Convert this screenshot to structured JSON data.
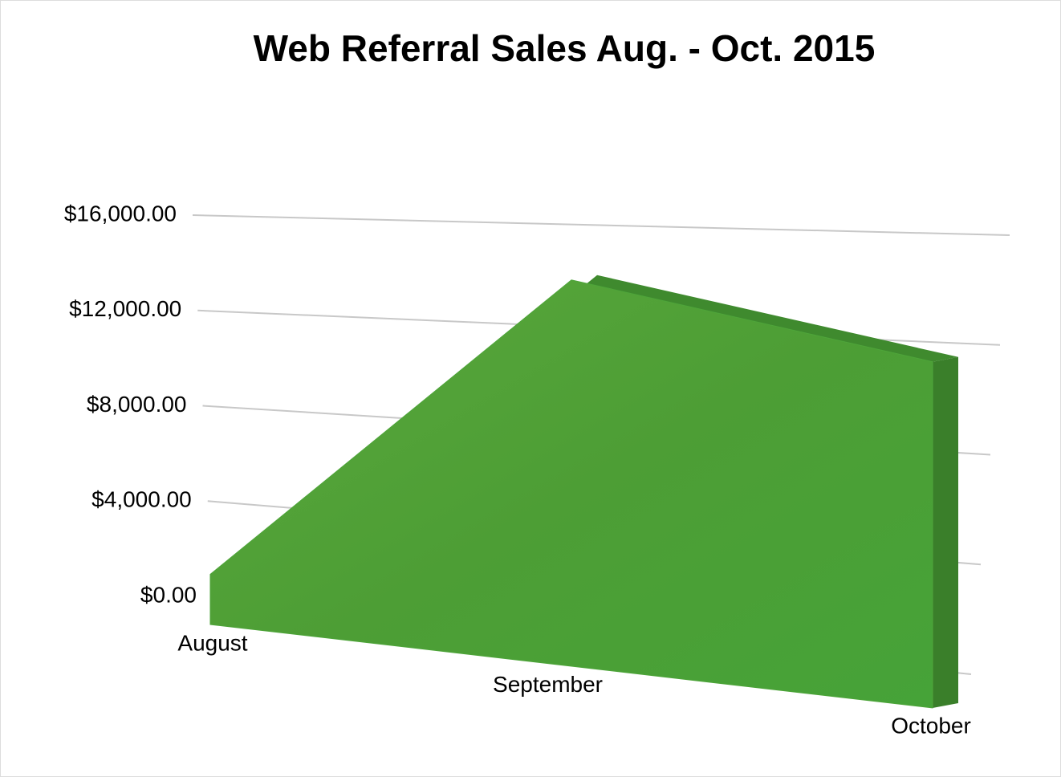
{
  "chart_data": {
    "type": "area3d",
    "title": "Web Referral Sales Aug. - Oct. 2015",
    "categories": [
      "August",
      "September",
      "October"
    ],
    "values": [
      2000,
      14000,
      11500
    ],
    "color": "#4ea53a",
    "ylim": [
      0,
      16000
    ],
    "yticks": [
      {
        "value": 0,
        "label": "$0.00"
      },
      {
        "value": 4000,
        "label": "$4,000.00"
      },
      {
        "value": 8000,
        "label": "$8,000.00"
      },
      {
        "value": 12000,
        "label": "$12,000.00"
      },
      {
        "value": 16000,
        "label": "$16,000.00"
      }
    ],
    "grid": true
  }
}
